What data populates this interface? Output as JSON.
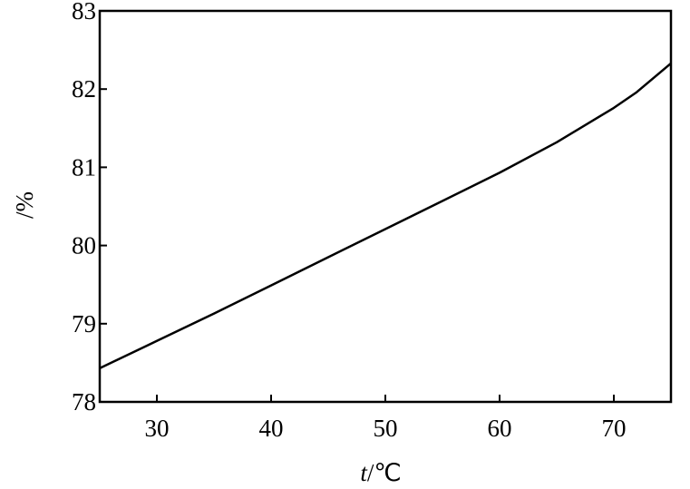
{
  "chart_data": {
    "type": "line",
    "title": "",
    "xlabel_var": "t",
    "xlabel_unit": "/℃",
    "ylabel": "/%",
    "xlim": [
      25,
      75
    ],
    "ylim": [
      78,
      83
    ],
    "xticks": [
      30,
      40,
      50,
      60,
      70
    ],
    "yticks": [
      78,
      79,
      80,
      81,
      82,
      83
    ],
    "grid": false,
    "series": [
      {
        "x": [
          25,
          30,
          35,
          40,
          45,
          50,
          55,
          60,
          65,
          70,
          72,
          75
        ],
        "y": [
          78.43,
          78.78,
          79.13,
          79.49,
          79.85,
          80.21,
          80.57,
          80.93,
          81.32,
          81.76,
          81.96,
          82.33
        ]
      }
    ]
  }
}
